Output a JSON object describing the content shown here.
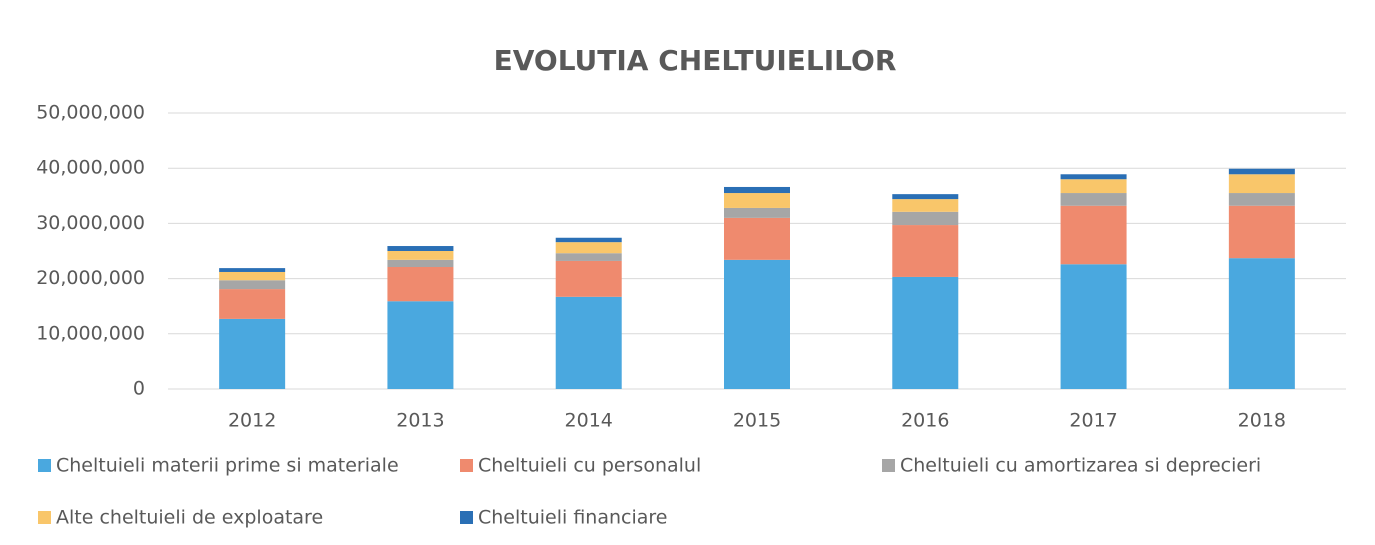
{
  "chart_data": {
    "type": "stacked_bar",
    "title": "EVOLUTIA CHELTUIELILOR",
    "categories": [
      "2012",
      "2013",
      "2014",
      "2015",
      "2016",
      "2017",
      "2018"
    ],
    "series": [
      {
        "name": "Cheltuieli materii prime si materiale",
        "color": "#4aa8df",
        "values": [
          12700000,
          15900000,
          16700000,
          23400000,
          20300000,
          22600000,
          23700000
        ]
      },
      {
        "name": "Cheltuieli cu personalul",
        "color": "#ef8a6e",
        "values": [
          5400000,
          6200000,
          6500000,
          7600000,
          9400000,
          10600000,
          9500000
        ]
      },
      {
        "name": "Cheltuieli cu amortizarea si deprecieri",
        "color": "#a6a6a6",
        "values": [
          1600000,
          1300000,
          1400000,
          1800000,
          2400000,
          2300000,
          2300000
        ]
      },
      {
        "name": "Alte cheltuieli de exploatare",
        "color": "#f9c66a",
        "values": [
          1500000,
          1600000,
          2000000,
          2700000,
          2300000,
          2500000,
          3400000
        ]
      },
      {
        "name": "Cheltuieli financiare",
        "color": "#2a6fb5",
        "values": [
          700000,
          900000,
          800000,
          1100000,
          900000,
          900000,
          1000000
        ]
      }
    ],
    "ylim": [
      0,
      50000000
    ],
    "yticks": [
      0,
      {
        "value": 10000000,
        "label": "10,000,000"
      },
      {
        "value": 20000000,
        "label": "20,000,000"
      },
      {
        "value": 30000000,
        "label": "30,000,000"
      },
      {
        "value": 40000000,
        "label": "40,000,000"
      },
      {
        "value": 50000000,
        "label": "50,000,000"
      }
    ],
    "grid": true,
    "legend": "bottom"
  }
}
